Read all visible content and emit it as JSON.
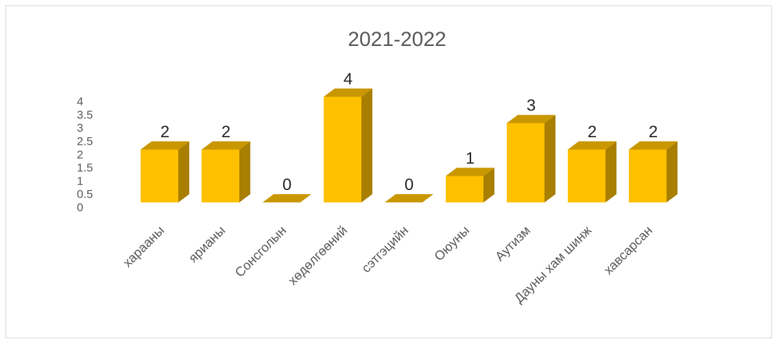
{
  "chart_data": {
    "type": "bar",
    "style": "3d-column",
    "title": "2021-2022",
    "xlabel": "",
    "ylabel": "",
    "ylim": [
      0,
      4
    ],
    "yticks": [
      0,
      0.5,
      1,
      1.5,
      2,
      2.5,
      3,
      3.5,
      4
    ],
    "grid": false,
    "legend": "none",
    "categories": [
      "харааны",
      "ярианы",
      "Сонсголын",
      "хөдөлгөөний",
      "сэтгэцийн",
      "Оюуны",
      "Аутизм",
      "Дауны хам шинж",
      "хавсарсан"
    ],
    "values": [
      2,
      2,
      0,
      4,
      0,
      1,
      3,
      2,
      2
    ],
    "colors": {
      "front": "#FFC000",
      "top": "#C99700",
      "side": "#A87F00"
    }
  }
}
